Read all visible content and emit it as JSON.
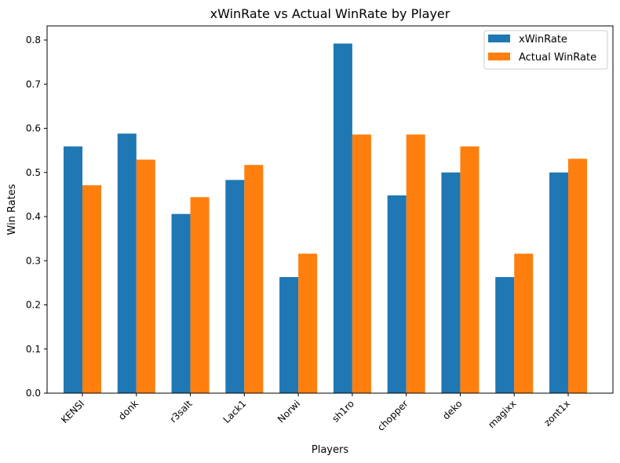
{
  "chart_data": {
    "type": "bar",
    "title": "xWinRate vs Actual WinRate by Player",
    "xlabel": "Players",
    "ylabel": "Win Rates",
    "categories": [
      "KENSI",
      "donk",
      "r3salt",
      "Lack1",
      "Norwi",
      "sh1ro",
      "chopper",
      "deko",
      "magixx",
      "zont1x"
    ],
    "series": [
      {
        "name": "xWinRate",
        "color": "#1f77b4",
        "values": [
          0.559,
          0.588,
          0.406,
          0.483,
          0.263,
          0.792,
          0.448,
          0.5,
          0.263,
          0.5
        ]
      },
      {
        "name": "Actual WinRate",
        "color": "#ff7f0e",
        "values": [
          0.471,
          0.529,
          0.444,
          0.517,
          0.316,
          0.586,
          0.586,
          0.559,
          0.316,
          0.531
        ]
      }
    ],
    "ylim": [
      0,
      0.832
    ],
    "yticks": [
      "0.0",
      "0.1",
      "0.2",
      "0.3",
      "0.4",
      "0.5",
      "0.6",
      "0.7",
      "0.8"
    ],
    "legend_position": "top-right",
    "grid": false
  }
}
